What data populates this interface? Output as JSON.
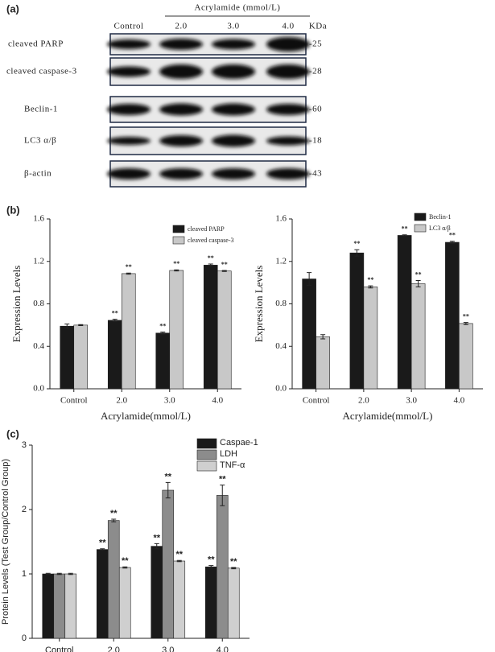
{
  "panels": [
    "(a)",
    "(b)",
    "(c)"
  ],
  "blot": {
    "title": "Acrylamide (mmol/L)",
    "lanes": [
      "Control",
      "2.0",
      "3.0",
      "4.0"
    ],
    "unit": "KDa",
    "rows": [
      {
        "label": "cleaved PARP",
        "kda": "-25"
      },
      {
        "label": "cleaved caspase-3",
        "kda": "-28"
      },
      {
        "label": "Beclin-1",
        "kda": "-60"
      },
      {
        "label": "LC3 α/β",
        "kda": "-18"
      },
      {
        "label": "β-actin",
        "kda": "-43"
      }
    ]
  },
  "chart_data": [
    {
      "type": "bar",
      "xlabel": "Acrylamide(mmol/L)",
      "ylabel": "Expression Levels",
      "categories": [
        "Control",
        "2.0",
        "3.0",
        "4.0"
      ],
      "ylim": [
        0,
        1.6
      ],
      "yticks": [
        {
          "value": 0,
          "label": "0.0"
        },
        0.4,
        0.8,
        1.2,
        1.6
      ],
      "legend": "upper right",
      "series": [
        {
          "name": "cleaved PARP",
          "color": "#1a1a1a",
          "values": [
            0.59,
            0.645,
            0.525,
            1.165
          ],
          "errors": [
            0.02,
            0.01,
            0.01,
            0.01
          ],
          "annotations": [
            null,
            "**",
            "**",
            "**"
          ]
        },
        {
          "name": "cleaved caspase-3",
          "color": "#c8c8c8",
          "values": [
            0.6,
            1.085,
            1.115,
            1.11
          ],
          "errors": [
            0.005,
            0.005,
            0.005,
            0.005
          ],
          "annotations": [
            null,
            "**",
            "**",
            "**"
          ]
        }
      ]
    },
    {
      "type": "bar",
      "xlabel": "Acrylamide(mmol/L)",
      "ylabel": "Expression Levels",
      "categories": [
        "Control",
        "2.0",
        "3.0",
        "4.0"
      ],
      "ylim": [
        0,
        1.6
      ],
      "yticks": [
        {
          "value": 0,
          "label": "0.0"
        },
        0.4,
        0.8,
        1.2,
        1.6
      ],
      "legend": "upper right",
      "series": [
        {
          "name": "Beclin-1",
          "color": "#1a1a1a",
          "values": [
            1.035,
            1.28,
            1.445,
            1.38
          ],
          "errors": [
            0.06,
            0.03,
            0.005,
            0.01
          ],
          "annotations": [
            null,
            "**",
            "**",
            "**"
          ]
        },
        {
          "name": "LC3 α/β",
          "color": "#c8c8c8",
          "values": [
            0.49,
            0.96,
            0.99,
            0.615
          ],
          "errors": [
            0.02,
            0.01,
            0.03,
            0.01
          ],
          "annotations": [
            null,
            "**",
            "**",
            "**"
          ]
        }
      ]
    },
    {
      "type": "bar",
      "ylabel": "Protein Levels (Test Group/Control Group)",
      "categories": [
        "Control",
        "2.0",
        "3.0",
        "4.0"
      ],
      "ylim": [
        0,
        3
      ],
      "yticks": [
        0,
        1,
        2,
        3
      ],
      "legend": "upper right",
      "series": [
        {
          "name": "Caspae-1",
          "color": "#1a1a1a",
          "values": [
            1.0,
            1.38,
            1.43,
            1.11
          ],
          "errors": [
            0.01,
            0.01,
            0.04,
            0.02
          ],
          "annotations": [
            null,
            "**",
            "**",
            "**"
          ]
        },
        {
          "name": "LDH",
          "color": "#8c8c8c",
          "values": [
            1.0,
            1.83,
            2.3,
            2.22
          ],
          "errors": [
            0.01,
            0.02,
            0.12,
            0.16
          ],
          "annotations": [
            null,
            "**",
            "**",
            "**"
          ]
        },
        {
          "name": "TNF-α",
          "color": "#cfcfcf",
          "values": [
            1.0,
            1.1,
            1.2,
            1.09
          ],
          "errors": [
            0.01,
            0.01,
            0.01,
            0.01
          ],
          "annotations": [
            null,
            "**",
            "**",
            "**"
          ]
        }
      ]
    }
  ]
}
